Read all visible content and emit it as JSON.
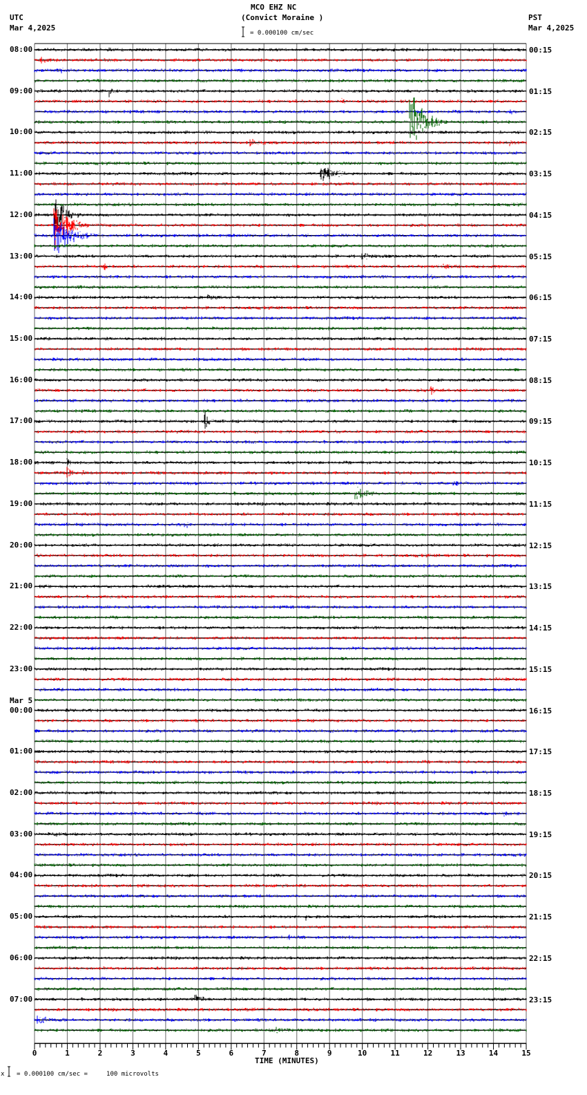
{
  "header": {
    "station": "MCO EHZ NC",
    "location": "(Convict Moraine )",
    "scale_text": "= 0.000100 cm/sec",
    "left_tz": "UTC",
    "left_date": "Mar 4,2025",
    "right_tz": "PST",
    "right_date": "Mar 4,2025"
  },
  "footer": {
    "scale_text": "= 0.000100 cm/sec =     100 microvolts",
    "prefix": "x"
  },
  "colors": {
    "trace": [
      "#000000",
      "#ff0000",
      "#0000ff",
      "#006400"
    ],
    "grid": "#808080",
    "axis": "#000000"
  },
  "chart_data": {
    "type": "line",
    "title": "MCO EHZ NC (Convict Moraine ) helicorder",
    "xlabel": "TIME (MINUTES)",
    "ylabel": "",
    "xlim": [
      0,
      15
    ],
    "x_ticks": [
      0,
      1,
      2,
      3,
      4,
      5,
      6,
      7,
      8,
      9,
      10,
      11,
      12,
      13,
      14,
      15
    ],
    "minor_ticks_per_minute": 6,
    "grid": true,
    "rows_per_hour": 4,
    "row_minutes": 15,
    "scale": "0.000100 cm/sec = 100 microvolts",
    "left_labels": [
      {
        "row": 0,
        "text": "08:00"
      },
      {
        "row": 4,
        "text": "09:00"
      },
      {
        "row": 8,
        "text": "10:00"
      },
      {
        "row": 12,
        "text": "11:00"
      },
      {
        "row": 16,
        "text": "12:00"
      },
      {
        "row": 20,
        "text": "13:00"
      },
      {
        "row": 24,
        "text": "14:00"
      },
      {
        "row": 28,
        "text": "15:00"
      },
      {
        "row": 32,
        "text": "16:00"
      },
      {
        "row": 36,
        "text": "17:00"
      },
      {
        "row": 40,
        "text": "18:00"
      },
      {
        "row": 44,
        "text": "19:00"
      },
      {
        "row": 48,
        "text": "20:00"
      },
      {
        "row": 52,
        "text": "21:00"
      },
      {
        "row": 56,
        "text": "22:00"
      },
      {
        "row": 60,
        "text": "23:00"
      },
      {
        "row": 64,
        "text": "00:00",
        "date": "Mar 5"
      },
      {
        "row": 68,
        "text": "01:00"
      },
      {
        "row": 72,
        "text": "02:00"
      },
      {
        "row": 76,
        "text": "03:00"
      },
      {
        "row": 80,
        "text": "04:00"
      },
      {
        "row": 84,
        "text": "05:00"
      },
      {
        "row": 88,
        "text": "06:00"
      },
      {
        "row": 92,
        "text": "07:00"
      }
    ],
    "right_labels": [
      {
        "row": 0,
        "text": "00:15"
      },
      {
        "row": 4,
        "text": "01:15"
      },
      {
        "row": 8,
        "text": "02:15"
      },
      {
        "row": 12,
        "text": "03:15"
      },
      {
        "row": 16,
        "text": "04:15"
      },
      {
        "row": 20,
        "text": "05:15"
      },
      {
        "row": 24,
        "text": "06:15"
      },
      {
        "row": 28,
        "text": "07:15"
      },
      {
        "row": 32,
        "text": "08:15"
      },
      {
        "row": 36,
        "text": "09:15"
      },
      {
        "row": 40,
        "text": "10:15"
      },
      {
        "row": 44,
        "text": "11:15"
      },
      {
        "row": 48,
        "text": "12:15"
      },
      {
        "row": 52,
        "text": "13:15"
      },
      {
        "row": 56,
        "text": "14:15"
      },
      {
        "row": 60,
        "text": "15:15"
      },
      {
        "row": 64,
        "text": "16:15"
      },
      {
        "row": 68,
        "text": "17:15"
      },
      {
        "row": 72,
        "text": "18:15"
      },
      {
        "row": 76,
        "text": "19:15"
      },
      {
        "row": 80,
        "text": "20:15"
      },
      {
        "row": 84,
        "text": "21:15"
      },
      {
        "row": 88,
        "text": "22:15"
      },
      {
        "row": 92,
        "text": "23:15"
      }
    ],
    "num_rows": 96,
    "events": [
      {
        "row": 0,
        "minute": 2.3,
        "amp": 5,
        "dur": 0.8
      },
      {
        "row": 0,
        "minute": 5.1,
        "amp": 4,
        "dur": 0.6
      },
      {
        "row": 0,
        "minute": 9.3,
        "amp": 4,
        "dur": 1.2
      },
      {
        "row": 0,
        "minute": 12.8,
        "amp": 5,
        "dur": 0.8
      },
      {
        "row": 1,
        "minute": 0.2,
        "amp": 5,
        "dur": 2.5
      },
      {
        "row": 2,
        "minute": 0.8,
        "amp": 6,
        "dur": 0.6
      },
      {
        "row": 4,
        "minute": 2.3,
        "amp": 10,
        "dur": 0.3
      },
      {
        "row": 4,
        "minute": 9.5,
        "amp": 4,
        "dur": 0.8
      },
      {
        "row": 5,
        "minute": 9.4,
        "amp": 5,
        "dur": 0.6
      },
      {
        "row": 6,
        "minute": 14.5,
        "amp": 6,
        "dur": 0.6
      },
      {
        "row": 7,
        "minute": 11.45,
        "amp": 60,
        "dur": 1.2
      },
      {
        "row": 9,
        "minute": 6.6,
        "amp": 7,
        "dur": 2.0
      },
      {
        "row": 9,
        "minute": 14.5,
        "amp": 8,
        "dur": 0.5
      },
      {
        "row": 12,
        "minute": 8.75,
        "amp": 16,
        "dur": 1.5
      },
      {
        "row": 13,
        "minute": 8.8,
        "amp": 4,
        "dur": 1.0
      },
      {
        "row": 16,
        "minute": 0.6,
        "amp": 40,
        "dur": 1.0
      },
      {
        "row": 17,
        "minute": 0.6,
        "amp": 45,
        "dur": 1.2
      },
      {
        "row": 18,
        "minute": 0.6,
        "amp": 35,
        "dur": 1.5
      },
      {
        "row": 18,
        "minute": 0.7,
        "amp": 6,
        "dur": 0.8
      },
      {
        "row": 19,
        "minute": 0.6,
        "amp": 4,
        "dur": 1.5
      },
      {
        "row": 20,
        "minute": 10.0,
        "amp": 8,
        "dur": 1.0
      },
      {
        "row": 21,
        "minute": 2.1,
        "amp": 8,
        "dur": 0.6
      },
      {
        "row": 21,
        "minute": 12.5,
        "amp": 5,
        "dur": 1.5
      },
      {
        "row": 22,
        "minute": 12.0,
        "amp": 5,
        "dur": 1.5
      },
      {
        "row": 23,
        "minute": 1.4,
        "amp": 4,
        "dur": 0.8
      },
      {
        "row": 24,
        "minute": 5.3,
        "amp": 6,
        "dur": 1.5
      },
      {
        "row": 33,
        "minute": 12.1,
        "amp": 14,
        "dur": 0.4
      },
      {
        "row": 36,
        "minute": 5.2,
        "amp": 22,
        "dur": 0.4
      },
      {
        "row": 40,
        "minute": 1.0,
        "amp": 12,
        "dur": 0.3
      },
      {
        "row": 41,
        "minute": 1.0,
        "amp": 14,
        "dur": 0.4
      },
      {
        "row": 41,
        "minute": 1.45,
        "amp": 10,
        "dur": 0.3
      },
      {
        "row": 42,
        "minute": 12.7,
        "amp": 5,
        "dur": 2.3
      },
      {
        "row": 43,
        "minute": 9.8,
        "amp": 14,
        "dur": 1.2
      },
      {
        "row": 46,
        "minute": 4.6,
        "amp": 6,
        "dur": 1.0
      },
      {
        "row": 52,
        "minute": 3.8,
        "amp": 4,
        "dur": 1.5
      },
      {
        "row": 61,
        "minute": 6.0,
        "amp": 4,
        "dur": 2.0
      },
      {
        "row": 72,
        "minute": 2.0,
        "amp": 4,
        "dur": 1.0
      },
      {
        "row": 74,
        "minute": 14.3,
        "amp": 6,
        "dur": 0.8
      },
      {
        "row": 76,
        "minute": 0.6,
        "amp": 5,
        "dur": 1.8
      },
      {
        "row": 84,
        "minute": 8.3,
        "amp": 6,
        "dur": 0.3
      },
      {
        "row": 86,
        "minute": 7.8,
        "amp": 5,
        "dur": 1.0
      },
      {
        "row": 92,
        "minute": 4.9,
        "amp": 10,
        "dur": 0.9
      },
      {
        "row": 93,
        "minute": 6.4,
        "amp": 5,
        "dur": 2.3
      },
      {
        "row": 94,
        "minute": 0.1,
        "amp": 8,
        "dur": 2.2
      },
      {
        "row": 95,
        "minute": 7.4,
        "amp": 7,
        "dur": 1.4
      }
    ]
  }
}
